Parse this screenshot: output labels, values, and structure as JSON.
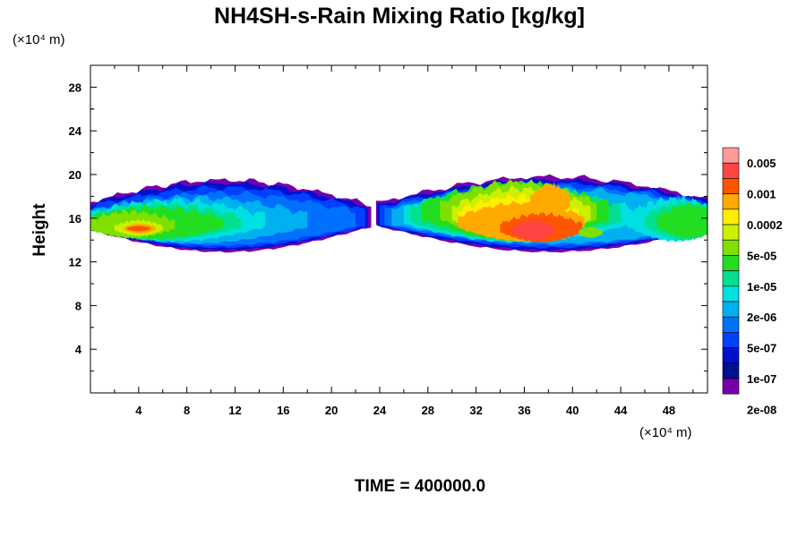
{
  "chart_data": {
    "type": "heatmap",
    "title": "NH4SH-s-Rain Mixing Ratio [kg/kg]",
    "ylabel": "Height",
    "xlabel": "",
    "x_unit": "(×10⁴ m)",
    "y_unit": "(×10⁴ m)",
    "time_label": "TIME = 400000.0",
    "xlim": [
      0,
      51.2
    ],
    "ylim": [
      0,
      30
    ],
    "x_ticks": [
      4,
      8,
      12,
      16,
      20,
      24,
      28,
      32,
      36,
      40,
      44,
      48
    ],
    "y_ticks": [
      4,
      8,
      12,
      16,
      20,
      24,
      28
    ],
    "legend": {
      "placement": "right",
      "labels": [
        "0.005",
        "0.001",
        "0.0002",
        "5e-05",
        "1e-05",
        "2e-06",
        "5e-07",
        "1e-07",
        "2e-08"
      ],
      "colors": [
        "#ff9999",
        "#ff4444",
        "#ff5500",
        "#ffaa00",
        "#ffee00",
        "#ccf000",
        "#7fe000",
        "#22dd22",
        "#00e090",
        "#00e0e0",
        "#00b0f0",
        "#0070ff",
        "#0040ff",
        "#0010d0",
        "#001090",
        "#7700aa"
      ]
    },
    "regions": [
      {
        "name": "left-cloud-band",
        "x": [
          0,
          23.2
        ],
        "y": [
          12.8,
          19.6
        ]
      },
      {
        "name": "right-cloud-band",
        "x": [
          23.6,
          51.2
        ],
        "y": [
          12.8,
          19.8
        ]
      }
    ]
  }
}
